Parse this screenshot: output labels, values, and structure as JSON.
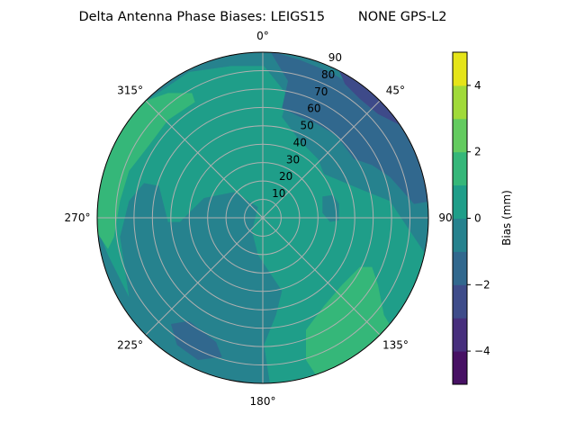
{
  "chart_data": {
    "type": "contour",
    "projection": "polar",
    "title": "Delta Antenna Phase Biases: LEIGS15        NONE GPS-L2",
    "angle_ticks": [
      "0°",
      "45°",
      "90°",
      "135°",
      "180°",
      "225°",
      "270°",
      "315°"
    ],
    "radial_ticks": [
      "10",
      "20",
      "30",
      "40",
      "50",
      "60",
      "70",
      "80",
      "90"
    ],
    "radial_range": [
      0,
      90
    ],
    "grid": true,
    "colormap": "viridis",
    "colorbar": {
      "label": "Bias (mm)",
      "range": [
        -5,
        5
      ],
      "levels": [
        -5,
        -4,
        -3,
        -2,
        -1,
        0,
        1,
        2,
        3,
        4,
        5
      ],
      "ticks": [
        -4,
        -2,
        0,
        2,
        4
      ],
      "tick_labels": [
        "−4",
        "−2",
        "0",
        "2",
        "4"
      ],
      "colors": [
        "#471164",
        "#472f7d",
        "#3e4c8a",
        "#31688e",
        "#26828e",
        "#1f9e89",
        "#35b779",
        "#63cb5f",
        "#a0da39",
        "#e5e419"
      ]
    }
  }
}
